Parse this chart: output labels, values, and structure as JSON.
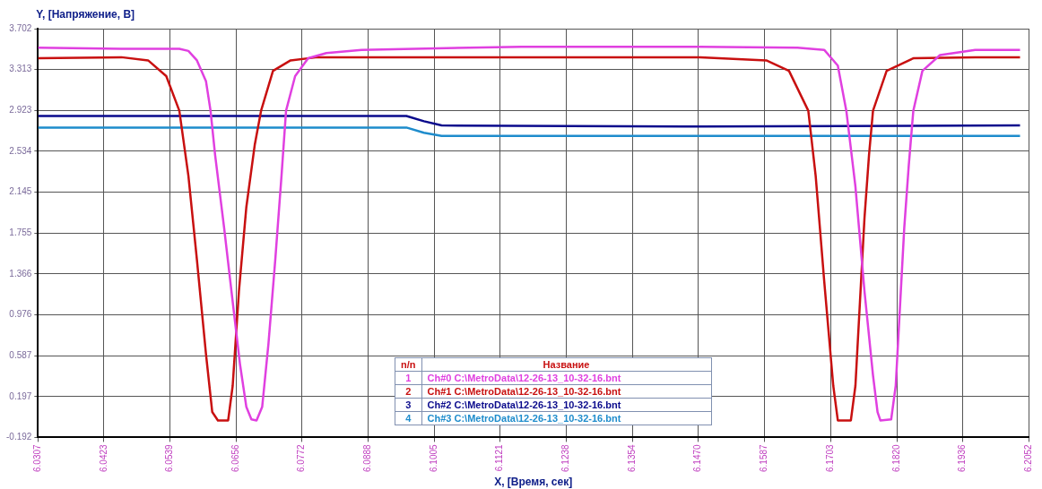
{
  "chart_data": {
    "type": "line",
    "xlabel": "X, [Время, сек]",
    "ylabel": "Y, [Напряжение, В]",
    "legend_title": "Название",
    "annotations": [
      "n/n",
      "1",
      "2",
      "3",
      "4"
    ],
    "xlim": [
      6.0307,
      6.2052
    ],
    "xticks": [
      6.0307,
      6.0423,
      6.0539,
      6.0656,
      6.0772,
      6.0888,
      6.1005,
      6.1121,
      6.1238,
      6.1354,
      {
        "value": 6.147,
        "label": "6.1470"
      },
      6.1587,
      6.1703,
      {
        "value": 6.182,
        "label": "6.1820"
      },
      6.1936,
      6.2052
    ],
    "ylim": [
      -0.192,
      3.702
    ],
    "yticks": [
      -0.192,
      0.197,
      0.587,
      0.976,
      1.366,
      1.755,
      2.145,
      2.534,
      2.923,
      3.313,
      3.702
    ],
    "grid": true,
    "legend": "bottom",
    "marker": "none",
    "line_style": "solid",
    "series": [
      {
        "name": "Ch#0 C:\\MetroData\\12-26-13_10-32-16.bnt",
        "color": "#e040e0",
        "x": [
          6.0307,
          6.0454,
          6.0556,
          6.0572,
          6.0587,
          6.0603,
          6.0611,
          6.0619,
          6.0635,
          6.065,
          6.0663,
          6.0674,
          6.0683,
          6.0692,
          6.0702,
          6.0713,
          6.0725,
          6.0736,
          6.0744,
          6.076,
          6.0783,
          6.0815,
          6.0877,
          6.1159,
          6.1473,
          6.1645,
          6.1692,
          6.1716,
          6.1731,
          6.1747,
          6.1763,
          6.1778,
          6.1786,
          6.1791,
          6.181,
          6.1818,
          6.1825,
          6.1833,
          6.1841,
          6.1849,
          6.1865,
          6.1896,
          6.1958,
          6.2037
        ],
        "values": [
          3.52,
          3.51,
          3.51,
          3.49,
          3.4,
          3.2,
          2.92,
          2.5,
          1.8,
          1.1,
          0.5,
          0.1,
          -0.02,
          -0.03,
          0.1,
          0.7,
          1.5,
          2.3,
          2.92,
          3.25,
          3.42,
          3.47,
          3.5,
          3.53,
          3.53,
          3.52,
          3.5,
          3.35,
          2.92,
          2.2,
          1.2,
          0.4,
          0.05,
          -0.03,
          -0.02,
          0.3,
          1.0,
          1.8,
          2.4,
          2.92,
          3.3,
          3.45,
          3.5,
          3.5
        ]
      },
      {
        "name": "Ch#1 C:\\MetroData\\12-26-13_10-32-16.bnt",
        "color": "#c81010",
        "x": [
          6.0307,
          6.0454,
          6.0501,
          6.0533,
          6.0556,
          6.0572,
          6.0587,
          6.0603,
          6.0614,
          6.0624,
          6.0642,
          6.065,
          6.0661,
          6.0674,
          6.0689,
          6.07,
          6.0721,
          6.0752,
          6.0799,
          6.1159,
          6.1473,
          6.159,
          6.163,
          6.1664,
          6.1677,
          6.1692,
          6.1708,
          6.1716,
          6.1739,
          6.1747,
          6.1755,
          6.1763,
          6.1771,
          6.1778,
          6.1802,
          6.1849,
          6.1958,
          6.2037
        ],
        "values": [
          3.42,
          3.43,
          3.4,
          3.25,
          2.92,
          2.3,
          1.5,
          0.6,
          0.05,
          -0.03,
          -0.03,
          0.3,
          1.2,
          2.0,
          2.6,
          2.92,
          3.3,
          3.4,
          3.43,
          3.43,
          3.43,
          3.4,
          3.3,
          2.92,
          2.3,
          1.3,
          0.3,
          -0.03,
          -0.03,
          0.3,
          1.1,
          1.9,
          2.5,
          2.92,
          3.3,
          3.42,
          3.43,
          3.43
        ]
      },
      {
        "name": "Ch#2 C:\\MetroData\\12-26-13_10-32-16.bnt",
        "color": "#0a0a8c",
        "x": [
          6.0307,
          6.0956,
          6.0987,
          6.1018,
          6.1473,
          6.2037
        ],
        "values": [
          2.87,
          2.87,
          2.82,
          2.78,
          2.77,
          2.78
        ]
      },
      {
        "name": "Ch#3 C:\\MetroData\\12-26-13_10-32-16.bnt",
        "color": "#1e8ccc",
        "x": [
          6.0307,
          6.0956,
          6.0987,
          6.1018,
          6.1473,
          6.2037
        ],
        "values": [
          2.76,
          2.76,
          2.71,
          2.68,
          2.68,
          2.68
        ]
      }
    ]
  }
}
